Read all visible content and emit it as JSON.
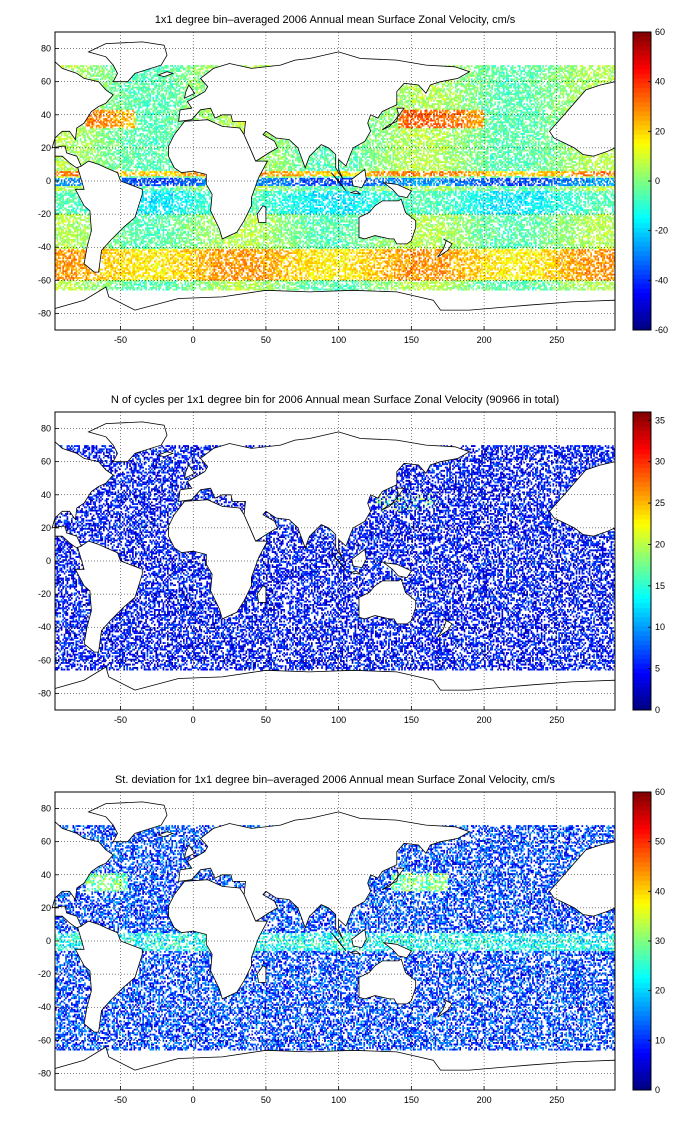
{
  "chart_data": [
    {
      "type": "heatmap",
      "title": "1x1 degree bin–averaged 2006 Annual mean Surface Zonal Velocity, cm/s",
      "xlim": [
        -95,
        290
      ],
      "ylim": [
        -90,
        90
      ],
      "x_ticks": [
        -50,
        0,
        50,
        100,
        150,
        200,
        250
      ],
      "y_ticks": [
        80,
        60,
        40,
        20,
        0,
        -20,
        -40,
        -60,
        -80
      ],
      "grid": true,
      "colorbar": {
        "min": -60,
        "max": 60,
        "ticks": [
          60,
          40,
          20,
          0,
          -20,
          -40,
          -60
        ],
        "colormap": "jet"
      },
      "colors": {
        "land": "#ffffff",
        "coastline": "#000000"
      }
    },
    {
      "type": "heatmap",
      "title": "N of cycles per 1x1 degree bin for 2006 Annual mean Surface Zonal Velocity (90966 in total)",
      "xlim": [
        -95,
        290
      ],
      "ylim": [
        -90,
        90
      ],
      "x_ticks": [
        -50,
        0,
        50,
        100,
        150,
        200,
        250
      ],
      "y_ticks": [
        80,
        60,
        40,
        20,
        0,
        -20,
        -40,
        -60,
        -80
      ],
      "grid": true,
      "colorbar": {
        "min": 0,
        "max": 36,
        "ticks": [
          35,
          30,
          25,
          20,
          15,
          10,
          5,
          0
        ],
        "colormap": "jet"
      },
      "colors": {
        "land": "#ffffff",
        "coastline": "#000000"
      }
    },
    {
      "type": "heatmap",
      "title": "St. deviation for 1x1 degree bin–averaged 2006 Annual mean Surface Zonal Velocity, cm/s",
      "xlim": [
        -95,
        290
      ],
      "ylim": [
        -90,
        90
      ],
      "x_ticks": [
        -50,
        0,
        50,
        100,
        150,
        200,
        250
      ],
      "y_ticks": [
        80,
        60,
        40,
        20,
        0,
        -20,
        -40,
        -60,
        -80
      ],
      "grid": true,
      "colorbar": {
        "min": 0,
        "max": 60,
        "ticks": [
          60,
          50,
          40,
          30,
          20,
          10,
          0
        ],
        "colormap": "jet"
      },
      "colors": {
        "land": "#ffffff",
        "coastline": "#000000"
      }
    }
  ]
}
